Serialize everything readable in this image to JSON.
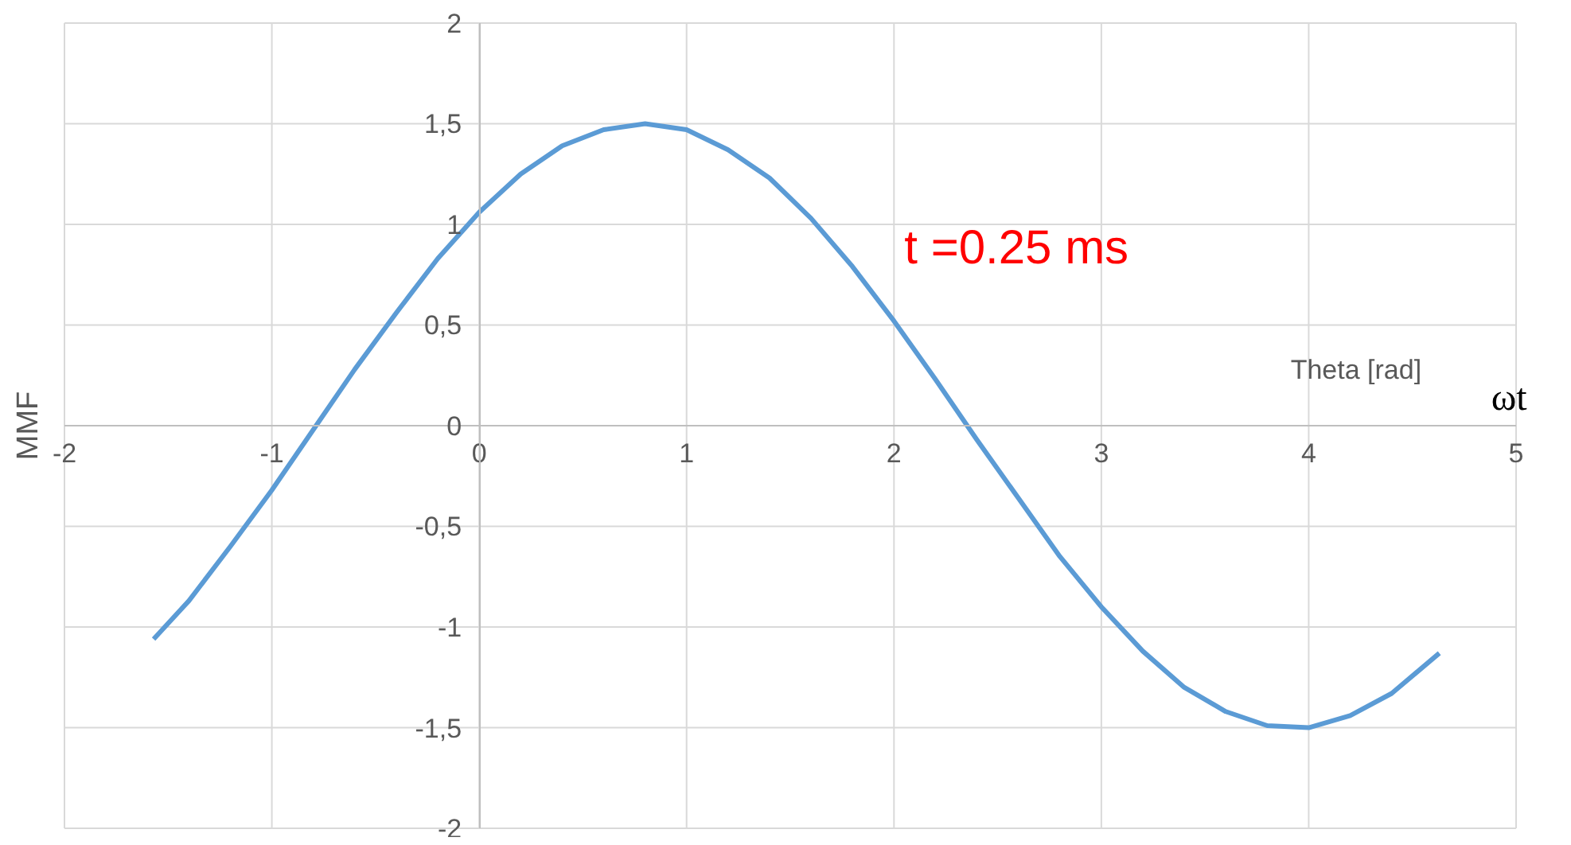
{
  "chart_data": {
    "type": "line",
    "xlabel": "Theta  [rad]",
    "ylabel": "MMF",
    "x": [
      -1.57,
      -1.4,
      -1.2,
      -1.0,
      -0.8,
      -0.6,
      -0.4,
      -0.2,
      0,
      0.2,
      0.4,
      0.6,
      0.8,
      1.0,
      1.2,
      1.4,
      1.6,
      1.8,
      2.0,
      2.2,
      2.4,
      2.6,
      2.8,
      3.0,
      3.2,
      3.4,
      3.6,
      3.8,
      4.0,
      4.2,
      4.4,
      4.63
    ],
    "series": [
      {
        "color": "#5b9bd5",
        "values": [
          -1.06,
          -0.87,
          -0.6,
          -0.32,
          -0.02,
          0.28,
          0.56,
          0.83,
          1.06,
          1.25,
          1.39,
          1.47,
          1.5,
          1.47,
          1.37,
          1.23,
          1.03,
          0.79,
          0.52,
          0.23,
          -0.07,
          -0.36,
          -0.65,
          -0.9,
          -1.12,
          -1.3,
          -1.42,
          -1.49,
          -1.5,
          -1.44,
          -1.33,
          -1.13
        ]
      }
    ],
    "xlim": [
      -2,
      5
    ],
    "ylim": [
      -2,
      2
    ],
    "xticks": [
      -2,
      -1,
      0,
      1,
      2,
      3,
      4,
      5
    ],
    "yticks": [
      {
        "value": -2,
        "label": "-2"
      },
      {
        "value": -1.5,
        "label": "-1,5"
      },
      {
        "value": -1,
        "label": "-1"
      },
      {
        "value": -0.5,
        "label": "-0,5"
      },
      {
        "value": 0,
        "label": "0"
      },
      {
        "value": 0.5,
        "label": "0,5"
      },
      {
        "value": 1,
        "label": "1"
      },
      {
        "value": 1.5,
        "label": "1,5"
      },
      {
        "value": 2,
        "label": "2"
      }
    ],
    "grid": true,
    "marker": "none",
    "line_style": "solid",
    "annotations": [
      "t =0.25 ms",
      "ωt"
    ]
  }
}
